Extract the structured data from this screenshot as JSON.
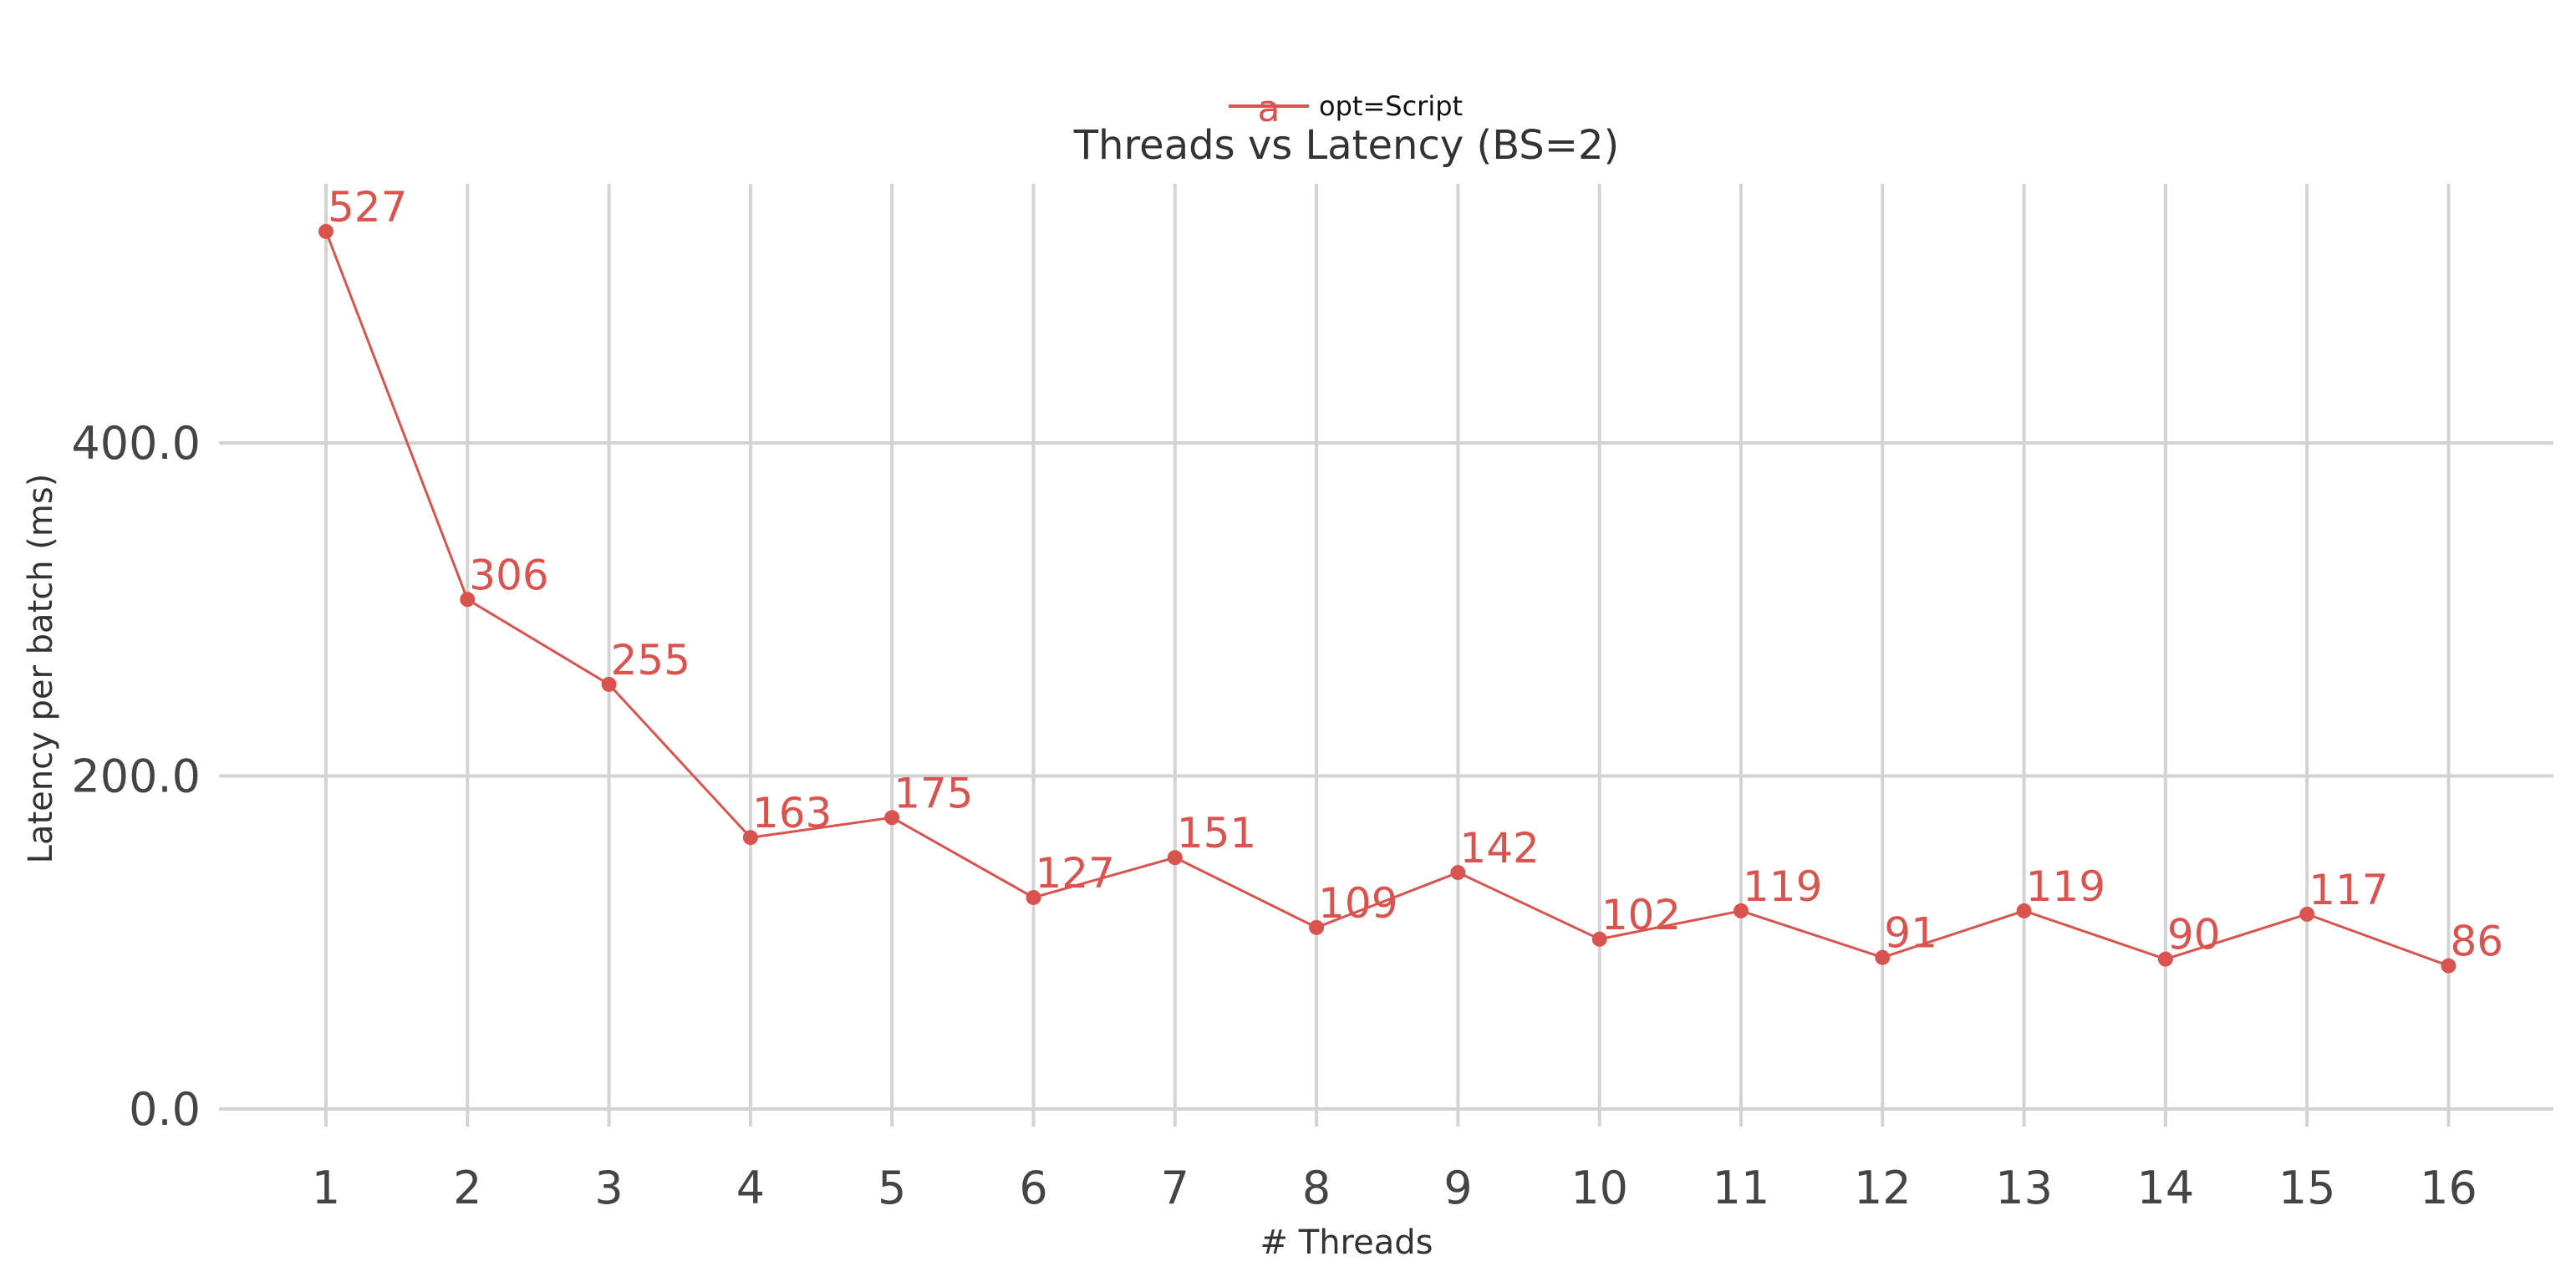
{
  "chart_data": {
    "type": "line",
    "title": "Threads vs Latency (BS=2)",
    "xlabel": "# Threads",
    "ylabel": "Latency per batch (ms)",
    "x": [
      1,
      2,
      3,
      4,
      5,
      6,
      7,
      8,
      9,
      10,
      11,
      12,
      13,
      14,
      15,
      16
    ],
    "series": [
      {
        "name": "opt=Script",
        "values": [
          527,
          306,
          255,
          163,
          175,
          127,
          151,
          109,
          142,
          102,
          119,
          91,
          119,
          90,
          117,
          86
        ],
        "color": "#d9534f"
      }
    ],
    "ylim": [
      0,
      560
    ],
    "yticks": [
      "0.0",
      "200.0",
      "400.0"
    ],
    "grid": true,
    "legend_position": "top-center",
    "legend_marker_text": "a"
  }
}
